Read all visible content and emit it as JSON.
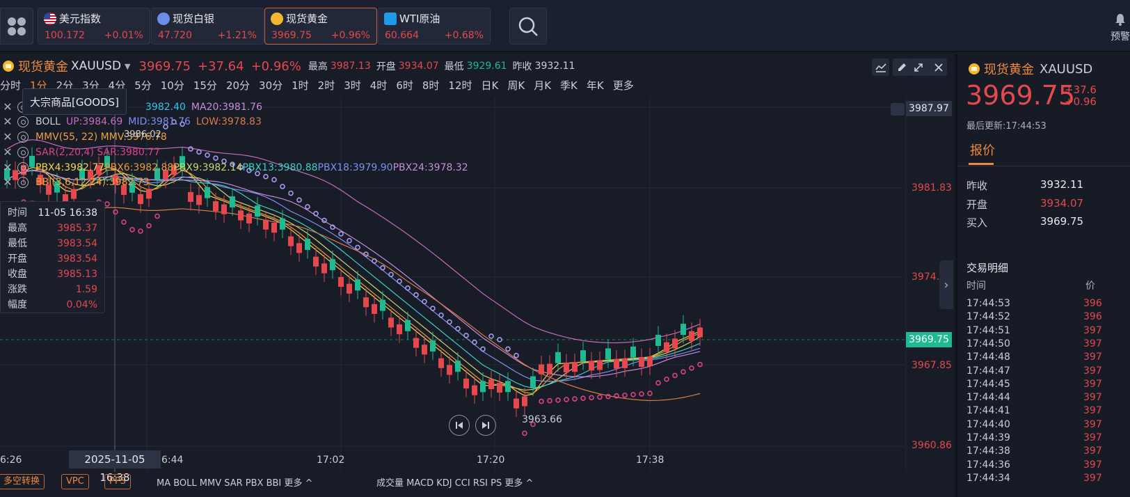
{
  "topbar": {
    "quotes": [
      {
        "name": "美元指数",
        "price": "100.172",
        "change": "+0.01%",
        "icon": "us-flag-icon"
      },
      {
        "name": "现货白银",
        "price": "47.720",
        "change": "+1.21%",
        "icon": "silver-icon"
      },
      {
        "name": "现货黄金",
        "price": "3969.75",
        "change": "+0.96%",
        "icon": "gold-icon",
        "active": true
      },
      {
        "name": "WTI原油",
        "price": "60.664",
        "change": "+0.68%",
        "icon": "oil-icon"
      }
    ],
    "alert_label": "预警"
  },
  "symbol": {
    "name": "现货黄金",
    "code": "XAUUSD",
    "price": "3969.75",
    "change": "+37.64",
    "change_pct": "+0.96%",
    "high_label": "最高",
    "high": "3987.13",
    "open_label": "开盘",
    "open": "3934.07",
    "low_label": "最低",
    "low": "3929.61",
    "prev_label": "昨收",
    "prev": "3932.11"
  },
  "periods": [
    "分时",
    "1分",
    "2分",
    "3分",
    "4分",
    "5分",
    "10分",
    "15分",
    "20分",
    "30分",
    "1时",
    "2时",
    "3时",
    "4时",
    "6时",
    "8时",
    "12时",
    "日K",
    "周K",
    "月K",
    "季K",
    "年K",
    "更多"
  ],
  "active_period": "1分",
  "goods_tooltip": "大宗商品[GOODS]",
  "indicators": {
    "ma_line": "3982.40",
    "ma20": "MA20:3981.76",
    "boll": "BOLL",
    "boll_up": "UP:3984.69",
    "boll_mid": "MID:3981.76",
    "boll_low": "LOW:3978.83",
    "mmv": "MMV(55, 22) MMV:3976.78",
    "sar": "SAR(2,20,4) SAR:3980.77",
    "pbx4": "PBX4:3982.77",
    "pbx6": "PBX6:3982.88",
    "pbx9": "PBX9:3982.14",
    "pbx13": "PBX13:3980.88",
    "pbx18": "PBX18:3979.90",
    "pbx24": "PBX24:3978.32",
    "bbi": "BBI(3,6,12,24):3982.73",
    "peak_note": "3986.02"
  },
  "info_box": {
    "rows": [
      {
        "k": "时间",
        "v": "11-05 16:38"
      },
      {
        "k": "最高",
        "v": "3985.37"
      },
      {
        "k": "最低",
        "v": "3983.54"
      },
      {
        "k": "开盘",
        "v": "3983.54"
      },
      {
        "k": "收盘",
        "v": "3985.13"
      },
      {
        "k": "涨跌",
        "v": "1.59"
      },
      {
        "k": "幅度",
        "v": "0.04%"
      }
    ]
  },
  "y_axis": {
    "top_badge": "3987.97",
    "ticks": [
      "3981.83",
      "3974.84",
      "3967.85",
      "3960.86"
    ],
    "current_badge": "3969.75"
  },
  "x_axis": {
    "ticks": [
      "6:26",
      "6:44",
      "17:02",
      "17:20",
      "17:38"
    ],
    "cursor_time": "2025-11-05 16:38"
  },
  "chart_notes": {
    "low_note": "3963.66"
  },
  "bottom_bar": {
    "btn1": "多空转换",
    "btn2": "VPC",
    "btn3": "PPS",
    "group1": "MA  BOLL  MMV  SAR  PBX  BBI  更多 ^",
    "group2": "成交量  MACD  KDJ  CCI  RSI  PS  更多 ^"
  },
  "right_panel": {
    "name": "现货黄金",
    "code": "XAUUSD",
    "price": "3969.75",
    "chg1": "+37.6",
    "chg2": "+0.96",
    "updated": "最后更新:17:44:53",
    "tab": "报价",
    "kv": [
      {
        "k": "昨收",
        "v": "3932.11",
        "red": false
      },
      {
        "k": "开盘",
        "v": "3934.07",
        "red": true
      },
      {
        "k": "买入",
        "v": "3969.75",
        "red": false
      }
    ],
    "trades_title": "交易明细",
    "trades_time_header": "时间",
    "trades_price_header": "价",
    "trades": [
      {
        "t": "17:44:53",
        "p": "396"
      },
      {
        "t": "17:44:52",
        "p": "396"
      },
      {
        "t": "17:44:51",
        "p": "397"
      },
      {
        "t": "17:44:50",
        "p": "397"
      },
      {
        "t": "17:44:48",
        "p": "397"
      },
      {
        "t": "17:44:47",
        "p": "397"
      },
      {
        "t": "17:44:45",
        "p": "397"
      },
      {
        "t": "17:44:44",
        "p": "397"
      },
      {
        "t": "17:44:41",
        "p": "397"
      },
      {
        "t": "17:44:40",
        "p": "397"
      },
      {
        "t": "17:44:39",
        "p": "397"
      },
      {
        "t": "17:44:38",
        "p": "397"
      },
      {
        "t": "17:44:36",
        "p": "397"
      },
      {
        "t": "17:44:34",
        "p": "397"
      }
    ]
  },
  "colors": {
    "up": "#e5484d",
    "down": "#1fb992",
    "accent": "#ef8a3c"
  }
}
